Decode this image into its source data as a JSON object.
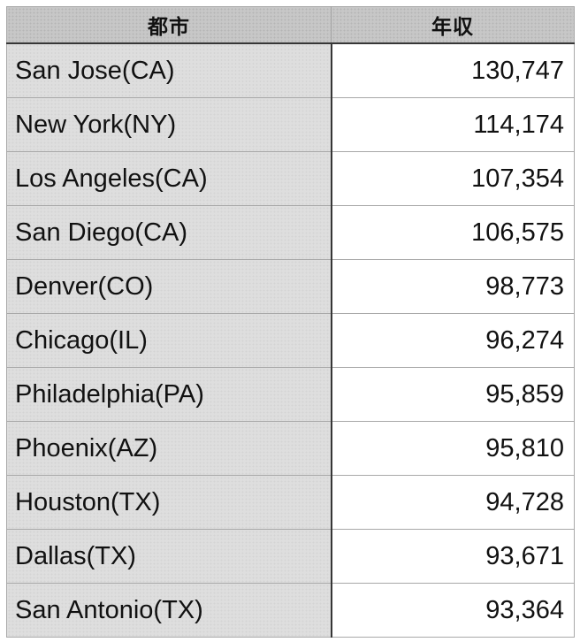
{
  "colors": {
    "page_background": "#ffffff",
    "header_background": "#c7c7c7",
    "city_column_background": "#dedede",
    "income_column_background": "#ffffff",
    "dark_divider": "#363636",
    "light_divider": "#a8a8a8",
    "text": "#111111"
  },
  "table": {
    "columns": [
      {
        "key": "city",
        "label": "都市"
      },
      {
        "key": "income",
        "label": "年収"
      }
    ],
    "rows": [
      {
        "city": "San Jose(CA)",
        "income": "130,747"
      },
      {
        "city": "New York(NY)",
        "income": "114,174"
      },
      {
        "city": "Los Angeles(CA)",
        "income": "107,354"
      },
      {
        "city": "San Diego(CA)",
        "income": "106,575"
      },
      {
        "city": "Denver(CO)",
        "income": "98,773"
      },
      {
        "city": "Chicago(IL)",
        "income": "96,274"
      },
      {
        "city": "Philadelphia(PA)",
        "income": "95,859"
      },
      {
        "city": "Phoenix(AZ)",
        "income": "95,810"
      },
      {
        "city": "Houston(TX)",
        "income": "94,728"
      },
      {
        "city": "Dallas(TX)",
        "income": "93,671"
      },
      {
        "city": "San Antonio(TX)",
        "income": "93,364"
      }
    ]
  },
  "chart_data": {
    "type": "table",
    "title": "",
    "columns": [
      "都市",
      "年収"
    ],
    "rows": [
      [
        "San Jose(CA)",
        130747
      ],
      [
        "New York(NY)",
        114174
      ],
      [
        "Los Angeles(CA)",
        107354
      ],
      [
        "San Diego(CA)",
        106575
      ],
      [
        "Denver(CO)",
        98773
      ],
      [
        "Chicago(IL)",
        96274
      ],
      [
        "Philadelphia(PA)",
        95859
      ],
      [
        "Phoenix(AZ)",
        95810
      ],
      [
        "Houston(TX)",
        94728
      ],
      [
        "Dallas(TX)",
        93671
      ],
      [
        "San Antonio(TX)",
        93364
      ]
    ]
  }
}
